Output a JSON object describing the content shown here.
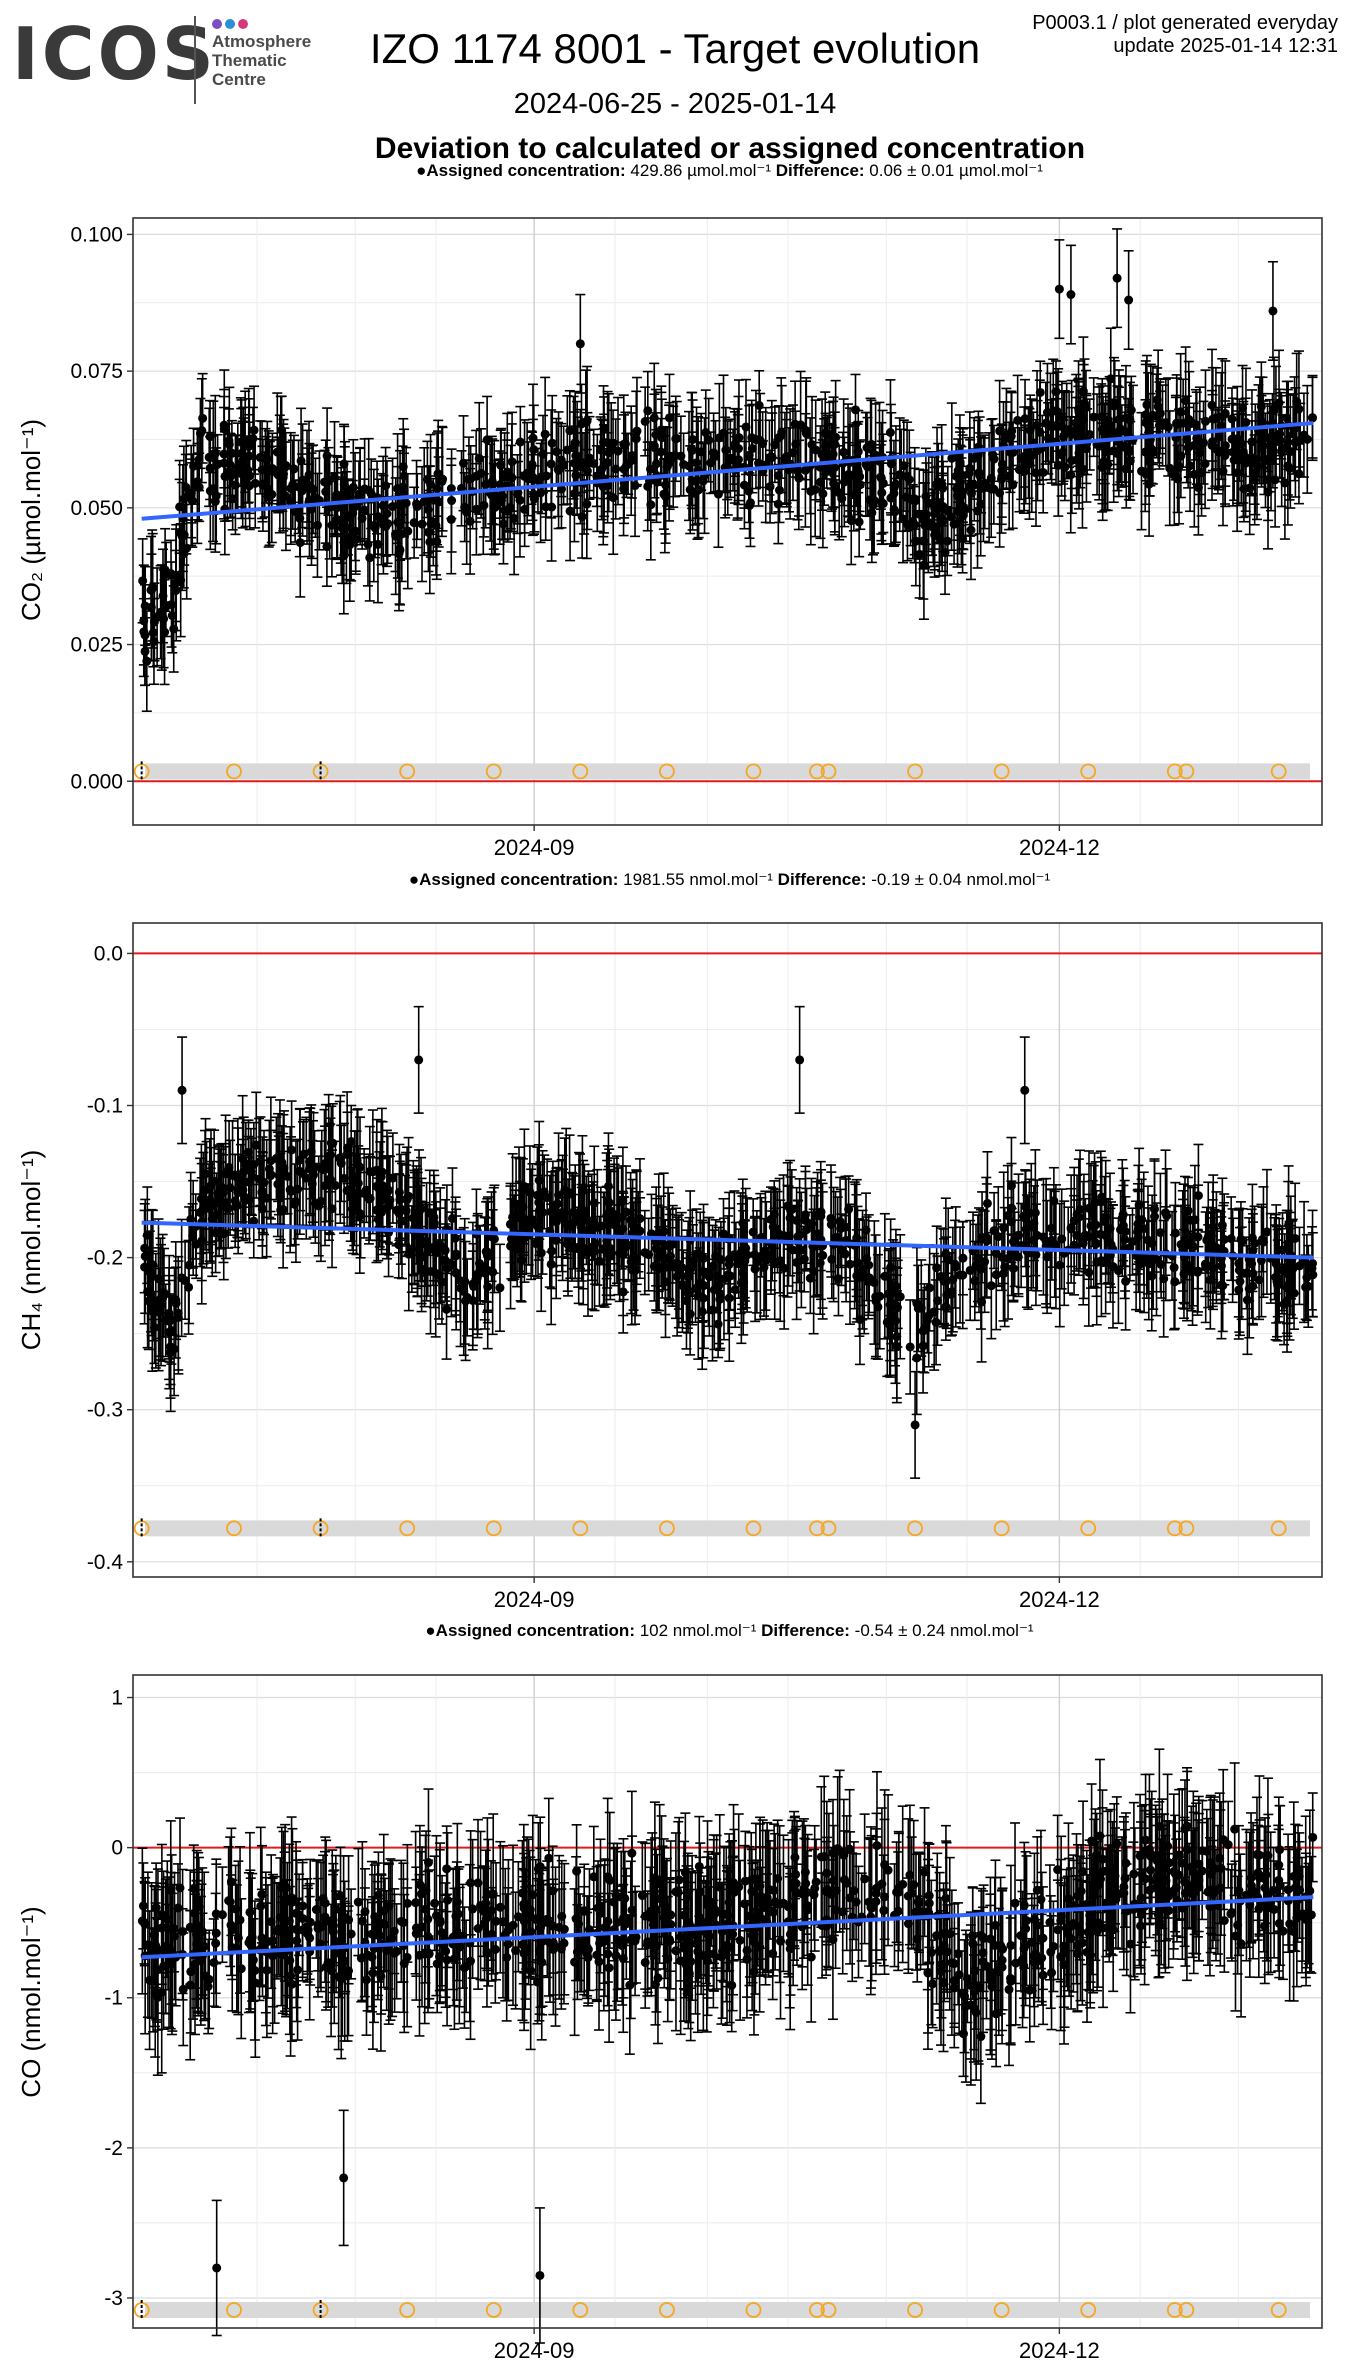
{
  "header": {
    "logo_text": "ICOS",
    "logo_sub": [
      "Atmosphere",
      "Thematic",
      "Centre"
    ],
    "title": "IZO 1174 8001 - Target evolution",
    "date_range": "2024-06-25 - 2025-01-14",
    "subtitle": "Deviation to calculated or assigned concentration",
    "meta_line1": "P0003.1 / plot generated everyday",
    "meta_line2": "update  2025-01-14 12:31"
  },
  "colors": {
    "points": "#000000",
    "trend": "#3366ff",
    "zero_line": "#e31a1c",
    "marker": "#f5a623",
    "band": "#d9d9d9",
    "logo_dots": [
      "#7a4fbf",
      "#2a8fd6",
      "#d63a7a"
    ]
  },
  "chart_data": [
    {
      "type": "scatter",
      "title": "",
      "ylabel": "CO₂ (µmol.mol⁻¹)",
      "caption": {
        "k1": "Assigned concentration:",
        "v1": " 429.86 µmol.mol⁻¹",
        "k2": "  Difference:",
        "v2": " 0.06 ± 0.01 µmol.mol⁻¹"
      },
      "x_range": [
        "2024-06-25",
        "2025-01-14"
      ],
      "ylim": [
        -0.008,
        0.103
      ],
      "y_ticks": [
        0.0,
        0.025,
        0.05,
        0.075,
        0.1
      ],
      "y_tick_labels": [
        "0.000",
        "0.025",
        "0.050",
        "0.075",
        "0.100"
      ],
      "x_ticks": [
        "2024-09-01",
        "2024-12-01"
      ],
      "x_tick_labels": [
        "2024-09",
        "2024-12"
      ],
      "trend": {
        "start": 0.048,
        "end": 0.0655
      },
      "band_y": 0.0018,
      "profile": [
        [
          "2024-06-25",
          0.03
        ],
        [
          "2024-06-30",
          0.032
        ],
        [
          "2024-07-04",
          0.058
        ],
        [
          "2024-07-15",
          0.058
        ],
        [
          "2024-07-25",
          0.052
        ],
        [
          "2024-08-05",
          0.048
        ],
        [
          "2024-08-20",
          0.051
        ],
        [
          "2024-09-01",
          0.056
        ],
        [
          "2024-09-15",
          0.058
        ],
        [
          "2024-10-01",
          0.06
        ],
        [
          "2024-10-20",
          0.058
        ],
        [
          "2024-11-01",
          0.055
        ],
        [
          "2024-11-08",
          0.048
        ],
        [
          "2024-11-20",
          0.058
        ],
        [
          "2024-12-01",
          0.064
        ],
        [
          "2024-12-20",
          0.064
        ],
        [
          "2025-01-05",
          0.06
        ],
        [
          "2025-01-14",
          0.063
        ]
      ],
      "noise": 0.008,
      "err": 0.009,
      "outliers": [
        [
          "2024-12-01",
          0.09
        ],
        [
          "2024-12-03",
          0.089
        ],
        [
          "2024-12-11",
          0.092
        ],
        [
          "2024-12-13",
          0.088
        ],
        [
          "2025-01-07",
          0.086
        ],
        [
          "2024-09-09",
          0.08
        ]
      ],
      "markers": [
        "2024-06-25",
        "2024-07-11",
        "2024-07-26",
        "2024-08-10",
        "2024-08-25",
        "2024-09-09",
        "2024-09-24",
        "2024-10-09",
        "2024-10-20",
        "2024-10-22",
        "2024-11-06",
        "2024-11-21",
        "2024-12-06",
        "2024-12-21",
        "2024-12-23",
        "2025-01-08"
      ],
      "black_ticks": [
        "2024-06-25",
        "2024-07-26"
      ]
    },
    {
      "type": "scatter",
      "title": "",
      "ylabel": "CH₄ (nmol.mol⁻¹)",
      "caption": {
        "k1": "Assigned concentration:",
        "v1": " 1981.55 nmol.mol⁻¹",
        "k2": "  Difference:",
        "v2": " -0.19 ± 0.04 nmol.mol⁻¹"
      },
      "x_range": [
        "2024-06-25",
        "2025-01-14"
      ],
      "ylim": [
        -0.41,
        0.02
      ],
      "y_ticks": [
        -0.4,
        -0.3,
        -0.2,
        -0.1,
        0.0
      ],
      "y_tick_labels": [
        "-0.4",
        "-0.3",
        "-0.2",
        "-0.1",
        "0.0"
      ],
      "x_ticks": [
        "2024-09-01",
        "2024-12-01"
      ],
      "x_tick_labels": [
        "2024-09",
        "2024-12"
      ],
      "trend": {
        "start": -0.177,
        "end": -0.2
      },
      "band_y": -0.378,
      "profile": [
        [
          "2024-06-25",
          -0.19
        ],
        [
          "2024-06-30",
          -0.25
        ],
        [
          "2024-07-05",
          -0.17
        ],
        [
          "2024-07-15",
          -0.15
        ],
        [
          "2024-07-28",
          -0.14
        ],
        [
          "2024-08-10",
          -0.17
        ],
        [
          "2024-08-20",
          -0.22
        ],
        [
          "2024-09-01",
          -0.17
        ],
        [
          "2024-09-15",
          -0.18
        ],
        [
          "2024-10-01",
          -0.22
        ],
        [
          "2024-10-15",
          -0.18
        ],
        [
          "2024-10-25",
          -0.19
        ],
        [
          "2024-11-05",
          -0.25
        ],
        [
          "2024-11-15",
          -0.2
        ],
        [
          "2024-12-01",
          -0.18
        ],
        [
          "2024-12-15",
          -0.19
        ],
        [
          "2025-01-01",
          -0.2
        ],
        [
          "2025-01-14",
          -0.21
        ]
      ],
      "noise": 0.025,
      "err": 0.035,
      "outliers": [
        [
          "2024-08-12",
          -0.07
        ],
        [
          "2024-07-02",
          -0.09
        ],
        [
          "2024-10-17",
          -0.07
        ],
        [
          "2024-11-25",
          -0.09
        ],
        [
          "2024-11-06",
          -0.31
        ]
      ],
      "markers": [
        "2024-06-25",
        "2024-07-11",
        "2024-07-26",
        "2024-08-10",
        "2024-08-25",
        "2024-09-09",
        "2024-09-24",
        "2024-10-09",
        "2024-10-20",
        "2024-10-22",
        "2024-11-06",
        "2024-11-21",
        "2024-12-06",
        "2024-12-21",
        "2024-12-23",
        "2025-01-08"
      ],
      "black_ticks": [
        "2024-06-25",
        "2024-07-26"
      ]
    },
    {
      "type": "scatter",
      "title": "",
      "ylabel": "CO (nmol.mol⁻¹)",
      "caption": {
        "k1": "Assigned concentration:",
        "v1": " 102 nmol.mol⁻¹",
        "k2": "  Difference:",
        "v2": " -0.54 ± 0.24 nmol.mol⁻¹"
      },
      "x_range": [
        "2024-06-25",
        "2025-01-14"
      ],
      "ylim": [
        -3.2,
        1.15
      ],
      "y_ticks": [
        -3,
        -2,
        -1,
        0,
        1
      ],
      "y_tick_labels": [
        "-3",
        "-2",
        "-1",
        "0",
        "1"
      ],
      "x_ticks": [
        "2024-09-01",
        "2024-12-01"
      ],
      "x_tick_labels": [
        "2024-09",
        "2024-12"
      ],
      "trend": {
        "start": -0.73,
        "end": -0.33
      },
      "band_y": -3.08,
      "profile": [
        [
          "2024-06-25",
          -0.6
        ],
        [
          "2024-08-01",
          -0.6
        ],
        [
          "2024-09-01",
          -0.5
        ],
        [
          "2024-10-01",
          -0.5
        ],
        [
          "2024-10-25",
          -0.3
        ],
        [
          "2024-11-05",
          -0.3
        ],
        [
          "2024-11-15",
          -0.9
        ],
        [
          "2024-12-01",
          -0.5
        ],
        [
          "2024-12-20",
          -0.2
        ],
        [
          "2025-01-14",
          -0.3
        ]
      ],
      "noise": 0.35,
      "err": 0.45,
      "outliers": [
        [
          "2024-07-08",
          -2.8
        ],
        [
          "2024-09-02",
          -2.85
        ],
        [
          "2024-07-30",
          -2.2
        ]
      ],
      "markers": [
        "2024-06-25",
        "2024-07-11",
        "2024-07-26",
        "2024-08-10",
        "2024-08-25",
        "2024-09-09",
        "2024-09-24",
        "2024-10-09",
        "2024-10-20",
        "2024-10-22",
        "2024-11-06",
        "2024-11-21",
        "2024-12-06",
        "2024-12-21",
        "2024-12-23",
        "2025-01-08"
      ],
      "black_ticks": [
        "2024-06-25",
        "2024-07-26"
      ]
    }
  ]
}
